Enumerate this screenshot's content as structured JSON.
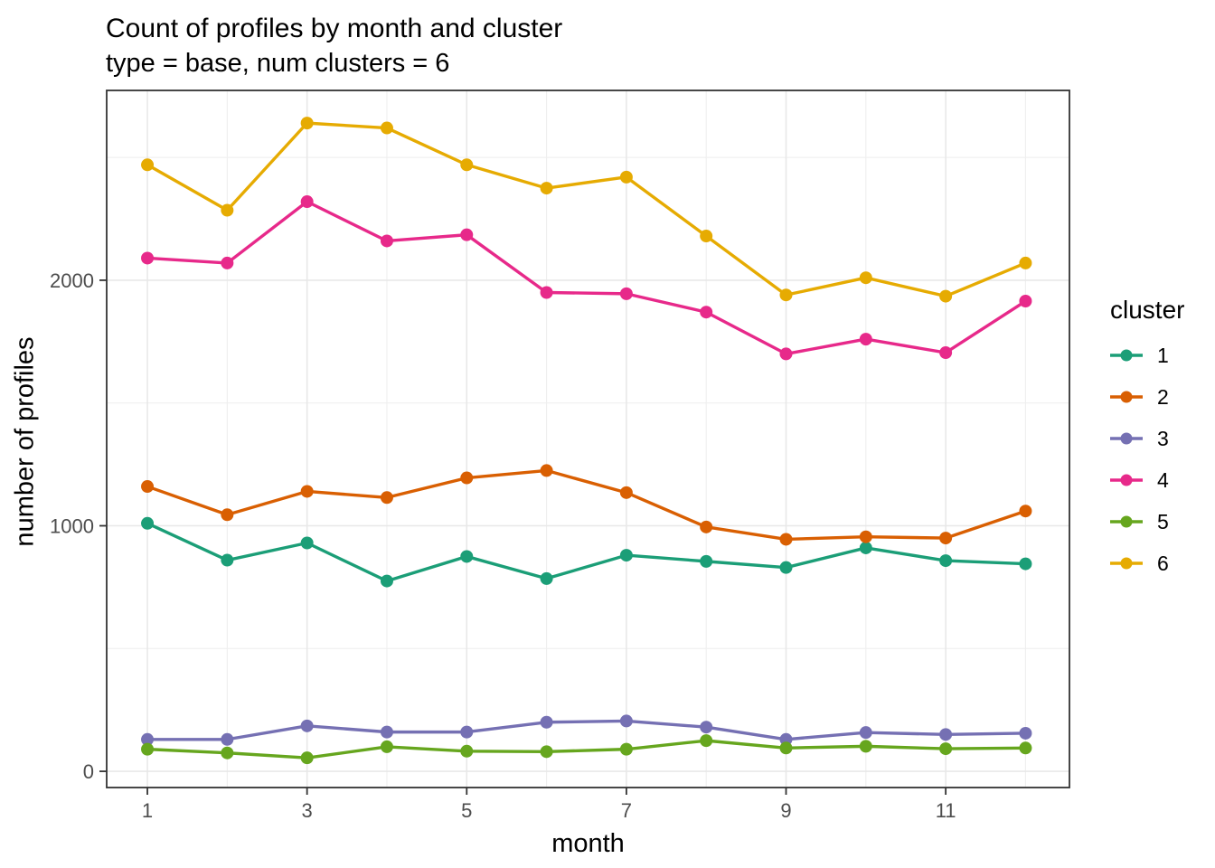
{
  "chart_data": {
    "type": "line",
    "title": "Count of profiles by month and cluster",
    "subtitle": "type = base, num clusters = 6",
    "xlabel": "month",
    "ylabel": "number of profiles",
    "legend_title": "cluster",
    "legend_position": "right",
    "grid": true,
    "x": [
      1,
      2,
      3,
      4,
      5,
      6,
      7,
      8,
      9,
      10,
      11,
      12
    ],
    "xlim": [
      0.49,
      12.55
    ],
    "ylim": [
      -66,
      2773
    ],
    "xticks": [
      1,
      3,
      5,
      7,
      9,
      11
    ],
    "xticks_minor": [
      2,
      4,
      6,
      8,
      10,
      12
    ],
    "yticks": [
      0,
      1000,
      2000
    ],
    "yticks_minor": [
      500,
      1500,
      2500
    ],
    "series": [
      {
        "name": "1",
        "color": "#1B9E77",
        "values": [
          1010,
          860,
          930,
          775,
          875,
          785,
          880,
          855,
          830,
          910,
          858,
          845
        ]
      },
      {
        "name": "2",
        "color": "#D95F02",
        "values": [
          1160,
          1045,
          1140,
          1115,
          1195,
          1225,
          1135,
          995,
          945,
          955,
          950,
          1060
        ]
      },
      {
        "name": "3",
        "color": "#7570B3",
        "values": [
          130,
          130,
          185,
          160,
          160,
          200,
          205,
          180,
          130,
          158,
          150,
          155
        ]
      },
      {
        "name": "4",
        "color": "#E7298A",
        "values": [
          2090,
          2070,
          2320,
          2160,
          2185,
          1950,
          1945,
          1870,
          1700,
          1760,
          1705,
          1915
        ]
      },
      {
        "name": "5",
        "color": "#66A61E",
        "values": [
          90,
          75,
          55,
          100,
          82,
          80,
          90,
          125,
          95,
          102,
          92,
          95
        ]
      },
      {
        "name": "6",
        "color": "#E6AB02",
        "values": [
          2470,
          2285,
          2640,
          2620,
          2470,
          2375,
          2420,
          2180,
          1940,
          2010,
          1935,
          2070
        ]
      }
    ],
    "theme": {
      "grid_major_color": "#E8E8E8",
      "grid_minor_color": "#EFEFEF",
      "panel_border_color": "#333333",
      "tick_color": "#333333",
      "tick_label_color": "#4D4D4D",
      "text_color": "#000000",
      "point_radius": 7,
      "line_width": 3.4
    }
  }
}
